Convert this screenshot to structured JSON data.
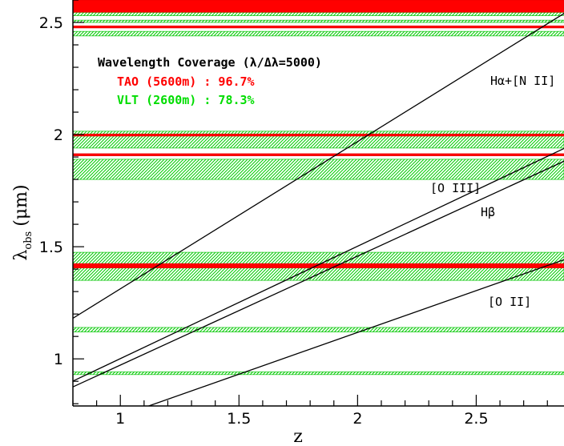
{
  "chart_data": {
    "type": "line",
    "xlabel": "z",
    "ylabel": "λobs (μm)",
    "ylabel_main": "λ",
    "ylabel_sub": "obs",
    "ylabel_unit": "(μm)",
    "xlim": [
      0.8,
      2.87
    ],
    "ylim": [
      0.79,
      2.6
    ],
    "x_ticks": [
      "1",
      "1.5",
      "2",
      "2.5"
    ],
    "x_tick_values": [
      1,
      1.5,
      2,
      2.5
    ],
    "y_ticks": [
      "1",
      "1.5",
      "2",
      "2.5"
    ],
    "y_tick_values": [
      1,
      1.5,
      2,
      2.5
    ],
    "legend": {
      "title": "Wavelength Coverage (λ/Δλ=5000)",
      "entries": [
        {
          "label": "TAO (5600m) : 96.7%",
          "color": "#ff0000"
        },
        {
          "label": "VLT (2600m) : 78.3%",
          "color": "#00dd00"
        }
      ]
    },
    "series": [
      {
        "name": "Hα+[N II]",
        "rest_wavelength_um": 0.6563,
        "x": [
          0.8,
          2.87
        ],
        "y": [
          1.181,
          2.54
        ]
      },
      {
        "name": "[O III]",
        "rest_wavelength_um": 0.5007,
        "x": [
          0.8,
          2.87
        ],
        "y": [
          0.901,
          1.938
        ]
      },
      {
        "name": "Hβ",
        "rest_wavelength_um": 0.4861,
        "x": [
          0.8,
          2.87
        ],
        "y": [
          0.875,
          1.881
        ]
      },
      {
        "name": "[O II]",
        "rest_wavelength_um": 0.3727,
        "x": [
          0.8,
          2.87
        ],
        "y": [
          0.671,
          1.442
        ]
      }
    ],
    "tao_gaps_um": [
      [
        2.545,
        2.6
      ],
      [
        2.475,
        2.485
      ],
      [
        1.993,
        2.003
      ],
      [
        1.905,
        1.915
      ],
      [
        1.405,
        1.425
      ]
    ],
    "vlt_gaps_um": [
      [
        2.53,
        2.545
      ],
      [
        2.5,
        2.51
      ],
      [
        2.44,
        2.46
      ],
      [
        1.94,
        2.015
      ],
      [
        1.8,
        1.89
      ],
      [
        1.35,
        1.475
      ],
      [
        1.12,
        1.14
      ],
      [
        0.93,
        0.942
      ]
    ]
  }
}
